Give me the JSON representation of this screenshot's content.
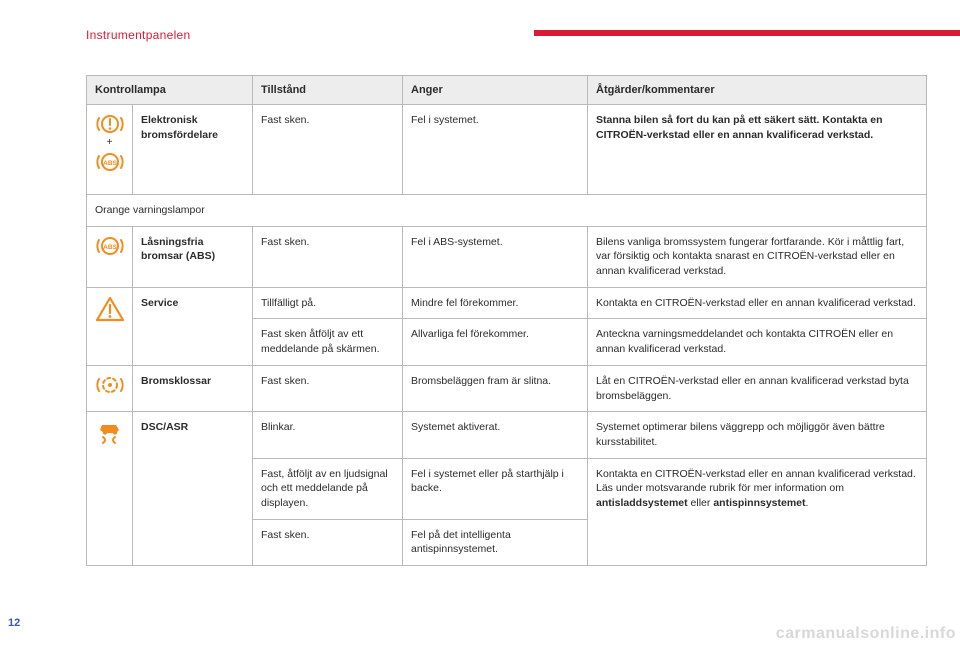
{
  "section_title": "Instrumentpanelen",
  "page_number": "12",
  "watermark": "carmanualsonline.info",
  "colors": {
    "accent_red": "#da1a32",
    "orange": "#f28c1e",
    "header_bg": "#ededed",
    "border": "#b9b9b9",
    "text": "#2b2b2b",
    "page_num": "#3a5ca8",
    "watermark": "#d8d8d8"
  },
  "table": {
    "headers": {
      "c1": "Kontrollampa",
      "c2": "Tillstånd",
      "c3": "Anger",
      "c4": "Åtgärder/kommentarer"
    },
    "rows": [
      {
        "icon": "brake-abs-combo",
        "name": "Elektronisk bromsfördelare",
        "state": "Fast sken.",
        "indicates": "Fel i systemet.",
        "action_bold": "Stanna bilen så fort du kan på ett säkert sätt. Kontakta en CITROËN-verkstad eller en annan kvalificerad verkstad."
      }
    ],
    "section2_label": "Orange varningslampor",
    "rows2": [
      {
        "icon": "abs",
        "name": "Låsningsfria bromsar (ABS)",
        "state": "Fast sken.",
        "indicates": "Fel i ABS-systemet.",
        "action": "Bilens vanliga bromssystem fungerar fortfarande. Kör i måttlig fart, var försiktig och kontakta snarast en CITROËN-verkstad eller en annan kvalificerad verkstad."
      },
      {
        "icon": "warning-triangle",
        "name": "Service",
        "sub": [
          {
            "state": "Tillfälligt på.",
            "indicates": "Mindre fel förekommer.",
            "action": "Kontakta en CITROËN-verkstad eller en annan kvalificerad verkstad."
          },
          {
            "state": "Fast sken åtföljt av ett meddelande på skärmen.",
            "indicates": "Allvarliga fel förekommer.",
            "action": "Anteckna varningsmeddelandet och kontakta CITROËN eller en annan kvalificerad verkstad."
          }
        ]
      },
      {
        "icon": "brake-pads",
        "name": "Bromsklossar",
        "state": "Fast sken.",
        "indicates": "Bromsbeläggen fram är slitna.",
        "action": "Låt en CITROËN-verkstad eller en annan kvalificerad verkstad byta bromsbeläggen."
      },
      {
        "icon": "dsc",
        "name": "DSC/ASR",
        "sub": [
          {
            "state": "Blinkar.",
            "indicates": "Systemet aktiverat.",
            "action": "Systemet optimerar bilens väggrepp och möjliggör även bättre kursstabilitet."
          },
          {
            "state": "Fast, åtföljt av en ljudsignal och ett meddelande på displayen.",
            "indicates": "Fel i systemet eller på starthjälp i backe.",
            "action_pre": "Kontakta en CITROËN-verkstad eller en annan kvalificerad verkstad.\nLäs under motsvarande rubrik för mer information om ",
            "action_b1": "antisladdsystemet",
            "action_mid": " eller ",
            "action_b2": "antispinnsystemet",
            "action_post": "."
          },
          {
            "state": "Fast sken.",
            "indicates": "Fel på det intelligenta antispinnsystemet."
          }
        ]
      }
    ]
  }
}
